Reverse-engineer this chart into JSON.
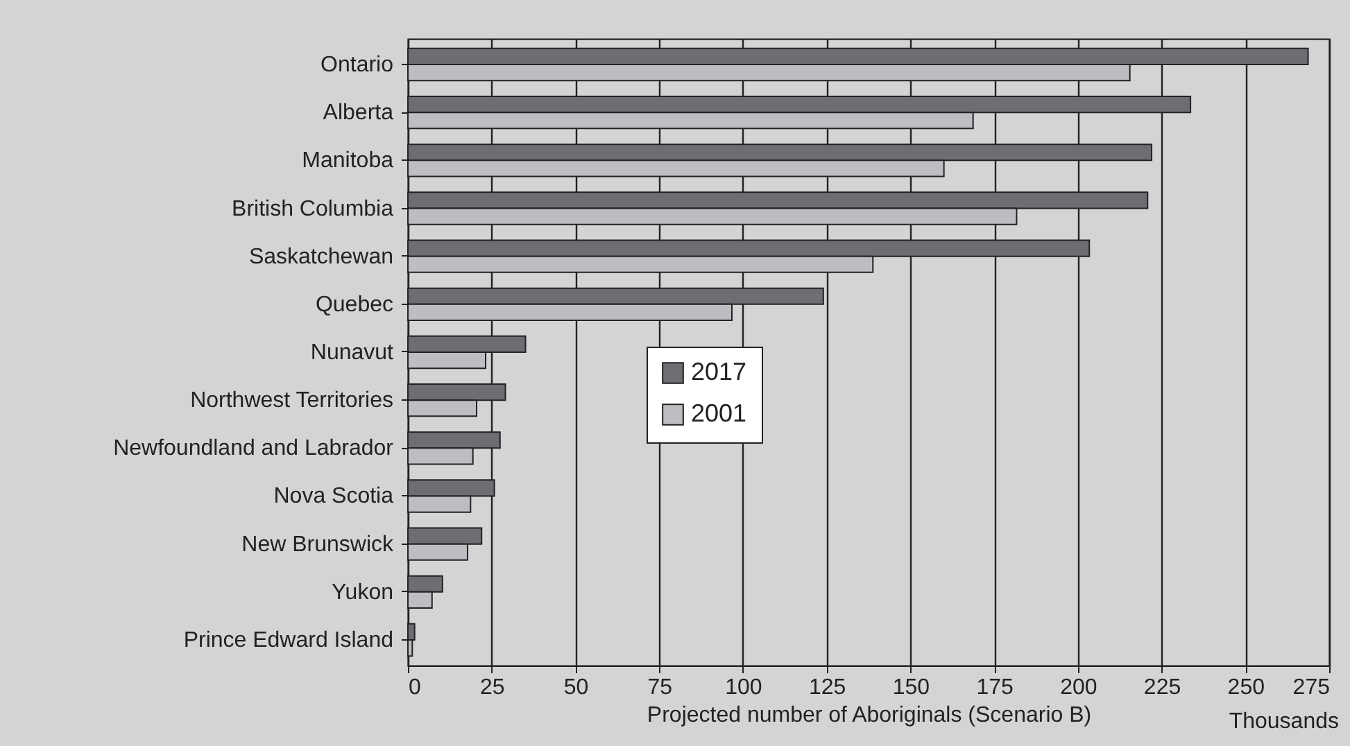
{
  "chart_data": {
    "type": "bar",
    "orientation": "horizontal",
    "categories": [
      "Ontario",
      "Alberta",
      "Manitoba",
      "British Columbia",
      "Saskatchewan",
      "Quebec",
      "Nunavut",
      "Northwest Territories",
      "Newfoundland and Labrador",
      "Nova Scotia",
      "New Brunswick",
      "Yukon",
      "Prince Edward Island"
    ],
    "series": [
      {
        "name": "2017",
        "color": "#6d6e72",
        "values": [
          268.7,
          233.6,
          222,
          220.8,
          203.4,
          124,
          35.1,
          29.1,
          27.5,
          25.8,
          22,
          10.3,
          2
        ]
      },
      {
        "name": "2001",
        "color": "#bdbec2",
        "values": [
          215.5,
          168.7,
          160,
          181.7,
          138.8,
          96.7,
          23.2,
          20.5,
          19.4,
          18.7,
          17.8,
          7.2,
          1.3
        ]
      }
    ],
    "xlabel": "Projected number of Aboriginals (Scenario B)",
    "annotations": [
      "Thousands"
    ],
    "xlim": [
      0,
      275
    ],
    "xticks": [
      0,
      25,
      50,
      75,
      100,
      125,
      150,
      175,
      200,
      225,
      250,
      275
    ],
    "grid": "x",
    "legend": "center"
  }
}
